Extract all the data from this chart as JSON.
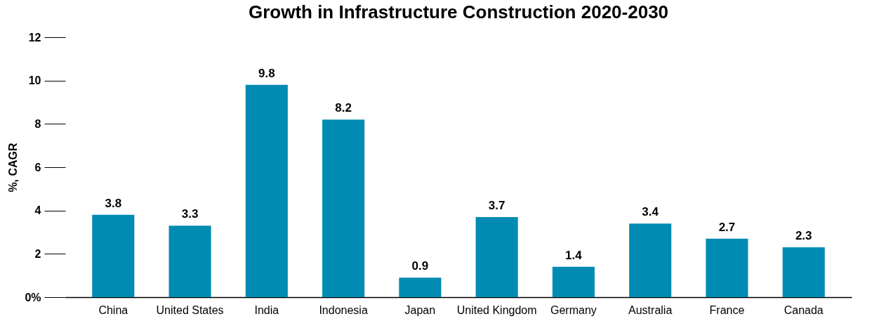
{
  "chart_data": {
    "type": "bar",
    "title": "Growth in Infrastructure Construction 2020-2030",
    "ylabel": "%, CAGR",
    "categories": [
      "China",
      "United States",
      "India",
      "Indonesia",
      "Japan",
      "United Kingdom",
      "Germany",
      "Australia",
      "France",
      "Canada"
    ],
    "values": [
      3.8,
      3.3,
      9.8,
      8.2,
      0.9,
      3.7,
      1.4,
      3.4,
      2.7,
      2.3
    ],
    "color": "#008bb2",
    "ylim": [
      0,
      12
    ],
    "yticks": [
      {
        "value": 0,
        "label": "0%"
      },
      2,
      4,
      6,
      8,
      10,
      12
    ],
    "data_labels": true,
    "grid": false
  }
}
